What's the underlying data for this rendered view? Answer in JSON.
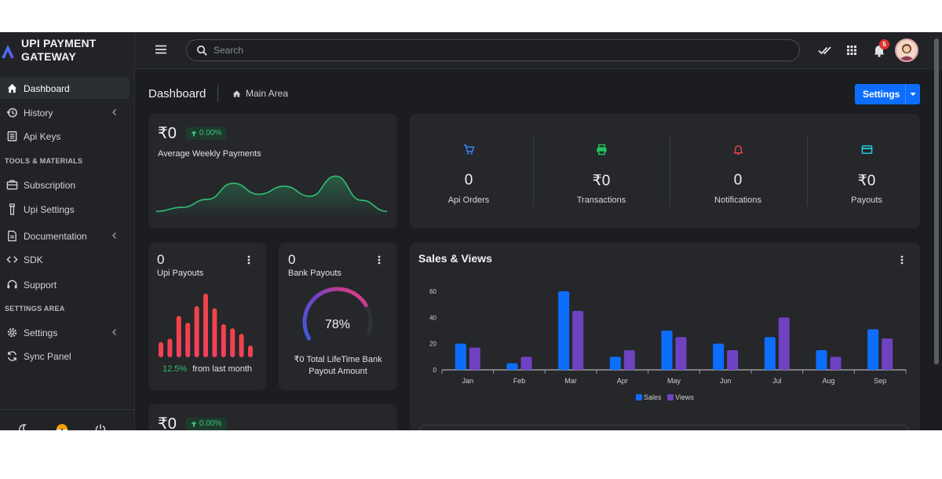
{
  "brand": {
    "title": "UPI PAYMENT GATEWAY",
    "accent": "#4c6ef5"
  },
  "sidebar": {
    "items": [
      {
        "label": "Dashboard",
        "icon": "home-icon",
        "active": true
      },
      {
        "label": "History",
        "icon": "history-icon",
        "chevron": true
      },
      {
        "label": "Api Keys",
        "icon": "list-icon"
      },
      {
        "label": "Subscription",
        "icon": "box-icon"
      },
      {
        "label": "Upi Settings",
        "icon": "upi-icon"
      },
      {
        "label": "Documentation",
        "icon": "document-icon",
        "chevron": true
      },
      {
        "label": "SDK",
        "icon": "code-icon"
      },
      {
        "label": "Support",
        "icon": "headset-icon"
      },
      {
        "label": "Settings",
        "icon": "gear-icon",
        "chevron": true
      },
      {
        "label": "Sync Panel",
        "icon": "sync-icon"
      }
    ],
    "sections": [
      "TOOLS & MATERIALS",
      "SETTINGS AREA"
    ],
    "footer_icons": [
      "moon-icon",
      "flag-icon",
      "power-icon"
    ]
  },
  "topbar": {
    "search_placeholder": "Search",
    "icons": [
      "menu-icon",
      "double-check-icon",
      "apps-grid-icon",
      "bell-icon"
    ],
    "notification_count": "5"
  },
  "header": {
    "title": "Dashboard",
    "breadcrumb": "Main Area",
    "settings_button": "Settings"
  },
  "weekly": {
    "amount": "₹0",
    "change": "0.00%",
    "label": "Average Weekly Payments",
    "line_color": "#2fbf71",
    "trend": [
      0.06,
      0.14,
      0.3,
      0.62,
      0.4,
      0.56,
      0.36,
      0.76,
      0.28,
      0.06
    ]
  },
  "stats": [
    {
      "value": "0",
      "label": "Api Orders",
      "icon": "cart-icon",
      "color": "#3b82f6",
      "bg": "#22324a"
    },
    {
      "value": "₹0",
      "label": "Transactions",
      "icon": "printer-icon",
      "color": "#22c55e",
      "bg": "#1f3a2b"
    },
    {
      "value": "0",
      "label": "Notifications",
      "icon": "bell-icon",
      "color": "#ef4444",
      "bg": "#3e2328"
    },
    {
      "value": "₹0",
      "label": "Payouts",
      "icon": "card-icon",
      "color": "#22d3ee",
      "bg": "#1d3a40"
    }
  ],
  "upi_payouts": {
    "value": "0",
    "label": "Upi Payouts",
    "bars": [
      0.22,
      0.27,
      0.6,
      0.5,
      0.74,
      0.92,
      0.71,
      0.48,
      0.42,
      0.34,
      0.17
    ],
    "change": "12.5%",
    "change_text": "from last month",
    "change_color": "#2fbf71"
  },
  "bank_payouts": {
    "value": "0",
    "label": "Bank Payouts",
    "percent": 78,
    "percent_label": "78%",
    "desc": "₹0 Total LifeTime Bank Payout Amount"
  },
  "bottom_card": {
    "amount": "₹0",
    "change": "0.00%"
  },
  "chart_data": {
    "type": "bar",
    "title": "Sales & Views",
    "categories": [
      "Jan",
      "Feb",
      "Mar",
      "Apr",
      "May",
      "Jun",
      "Jul",
      "Aug",
      "Sep"
    ],
    "series": [
      {
        "name": "Sales",
        "values": [
          20,
          5,
          60,
          10,
          30,
          20,
          25,
          15,
          31
        ],
        "color": "#0d6efd"
      },
      {
        "name": "Views",
        "values": [
          17,
          10,
          45,
          15,
          25,
          15,
          40,
          10,
          24
        ],
        "color": "#6f42c1"
      }
    ],
    "yticks": [
      "0",
      "20",
      "40",
      "60"
    ],
    "ylim": [
      0,
      60
    ],
    "grid": false,
    "legend": "bottom"
  }
}
